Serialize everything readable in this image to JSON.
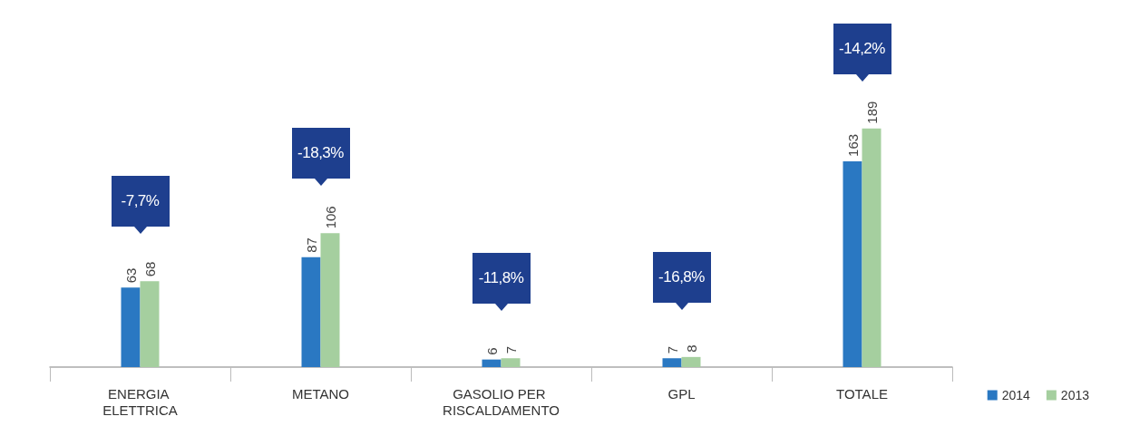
{
  "chart_data": {
    "type": "bar",
    "categories": [
      "ENERGIA ELETTRICA",
      "METANO",
      "GASOLIO PER RISCALDAMENTO",
      "GPL",
      "TOTALE"
    ],
    "series": [
      {
        "name": "2014",
        "color": "#2a78c2",
        "values": [
          63,
          87,
          6,
          7,
          163
        ]
      },
      {
        "name": "2013",
        "color": "#a5cf9f",
        "values": [
          68,
          106,
          7,
          8,
          189
        ]
      }
    ],
    "data_labels": true,
    "legend": "bottom right",
    "annotations": [
      "-7,7%",
      "-18,3%",
      "-11,8%",
      "-16,8%",
      "-14,2%"
    ]
  }
}
